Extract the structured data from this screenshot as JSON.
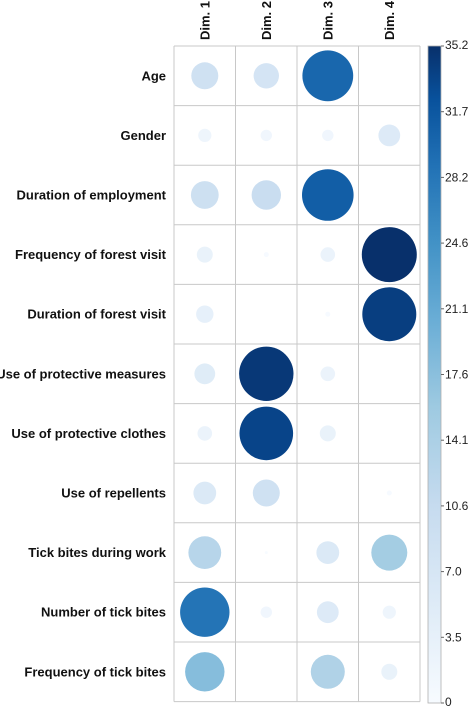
{
  "chart_data": {
    "type": "heatmap",
    "columns": [
      "Dim. 1",
      "Dim. 2",
      "Dim. 3",
      "Dim. 4"
    ],
    "rows": [
      "Age",
      "Gender",
      "Duration of employment",
      "Frequency of forest visit",
      "Duration of forest visit",
      "Use of protective measures",
      "Use of protective clothes",
      "Use of repellents",
      "Tick bites during work",
      "Number of tick bites",
      "Frequency of tick bites"
    ],
    "values": [
      [
        8.5,
        7.5,
        30.0,
        0.0
      ],
      [
        2.0,
        1.5,
        1.5,
        5.5
      ],
      [
        9.0,
        10.0,
        31.0,
        0.0
      ],
      [
        3.0,
        0.3,
        2.5,
        35.2
      ],
      [
        3.5,
        0.0,
        0.3,
        34.0
      ],
      [
        5.0,
        34.5,
        2.5,
        0.0
      ],
      [
        2.5,
        33.5,
        3.0,
        0.0
      ],
      [
        6.0,
        8.5,
        0.0,
        0.3
      ],
      [
        12.5,
        0.1,
        6.0,
        15.0
      ],
      [
        28.5,
        1.5,
        5.5,
        2.0
      ],
      [
        18.0,
        0.0,
        13.5,
        3.0
      ]
    ],
    "colorbar": {
      "ticks": [
        "35.2",
        "31.7",
        "28.2",
        "24.6",
        "21.1",
        "17.6",
        "14.1",
        "10.6",
        "7.0",
        "3.5",
        "0"
      ],
      "min": 0,
      "max": 35.2,
      "low_color": "#f7fbff",
      "mid_color": "#6baed6",
      "high_color": "#08306b"
    },
    "grid": true,
    "legend_position": "right"
  }
}
